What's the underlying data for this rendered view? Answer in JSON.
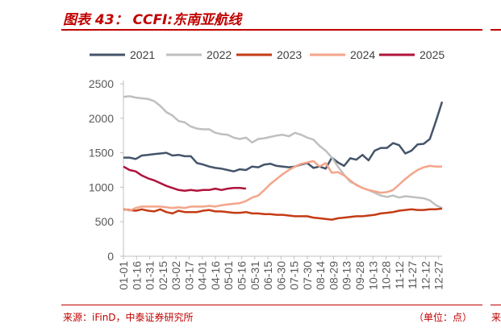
{
  "header": {
    "title": "图表 43：  CCFI:东南亚航线"
  },
  "footer": {
    "source": "来源：iFinD，中泰证券研究所",
    "unit": "（单位：点）",
    "side_mark": "来"
  },
  "chart_data": {
    "type": "line",
    "title": "",
    "xlabel": "",
    "ylabel": "",
    "ylim": [
      0,
      2500
    ],
    "yticks": [
      0,
      500,
      1000,
      1500,
      2000,
      2500
    ],
    "grid": false,
    "legend_position": "top",
    "x_ticks": [
      "01-01",
      "01-16",
      "01-31",
      "02-15",
      "03-02",
      "03-17",
      "04-01",
      "04-16",
      "05-01",
      "05-16",
      "05-31",
      "06-15",
      "06-30",
      "07-15",
      "07-30",
      "08-14",
      "08-29",
      "09-13",
      "09-28",
      "10-13",
      "10-28",
      "11-12",
      "11-27",
      "12-12",
      "12-27"
    ],
    "series": [
      {
        "name": "2021",
        "color": "#44546a",
        "values": [
          [
            "01-01",
            1430
          ],
          [
            "01-08",
            1430
          ],
          [
            "01-15",
            1410
          ],
          [
            "01-22",
            1460
          ],
          [
            "01-29",
            1470
          ],
          [
            "02-05",
            1480
          ],
          [
            "02-12",
            1490
          ],
          [
            "02-19",
            1500
          ],
          [
            "02-26",
            1460
          ],
          [
            "03-05",
            1470
          ],
          [
            "03-12",
            1450
          ],
          [
            "03-19",
            1450
          ],
          [
            "03-26",
            1350
          ],
          [
            "04-02",
            1330
          ],
          [
            "04-09",
            1300
          ],
          [
            "04-16",
            1280
          ],
          [
            "04-23",
            1270
          ],
          [
            "04-30",
            1250
          ],
          [
            "05-07",
            1230
          ],
          [
            "05-14",
            1260
          ],
          [
            "05-21",
            1250
          ],
          [
            "05-28",
            1300
          ],
          [
            "06-04",
            1290
          ],
          [
            "06-11",
            1330
          ],
          [
            "06-18",
            1340
          ],
          [
            "06-25",
            1310
          ],
          [
            "07-02",
            1300
          ],
          [
            "07-09",
            1290
          ],
          [
            "07-16",
            1300
          ],
          [
            "07-23",
            1330
          ],
          [
            "07-30",
            1350
          ],
          [
            "08-06",
            1280
          ],
          [
            "08-13",
            1300
          ],
          [
            "08-20",
            1270
          ],
          [
            "08-27",
            1430
          ],
          [
            "09-03",
            1360
          ],
          [
            "09-10",
            1310
          ],
          [
            "09-17",
            1420
          ],
          [
            "09-24",
            1400
          ],
          [
            "10-01",
            1470
          ],
          [
            "10-08",
            1390
          ],
          [
            "10-15",
            1530
          ],
          [
            "10-22",
            1570
          ],
          [
            "10-29",
            1570
          ],
          [
            "11-05",
            1640
          ],
          [
            "11-12",
            1610
          ],
          [
            "11-19",
            1490
          ],
          [
            "11-26",
            1530
          ],
          [
            "12-03",
            1620
          ],
          [
            "12-10",
            1630
          ],
          [
            "12-17",
            1700
          ],
          [
            "12-24",
            1960
          ],
          [
            "12-31",
            2240
          ]
        ]
      },
      {
        "name": "2022",
        "color": "#bfbfbf",
        "values": [
          [
            "01-01",
            2310
          ],
          [
            "01-08",
            2320
          ],
          [
            "01-15",
            2300
          ],
          [
            "01-22",
            2290
          ],
          [
            "01-29",
            2280
          ],
          [
            "02-05",
            2250
          ],
          [
            "02-12",
            2180
          ],
          [
            "02-19",
            2090
          ],
          [
            "02-26",
            2040
          ],
          [
            "03-05",
            1960
          ],
          [
            "03-12",
            1940
          ],
          [
            "03-19",
            1880
          ],
          [
            "03-26",
            1850
          ],
          [
            "04-02",
            1840
          ],
          [
            "04-09",
            1840
          ],
          [
            "04-16",
            1790
          ],
          [
            "04-23",
            1770
          ],
          [
            "04-30",
            1760
          ],
          [
            "05-07",
            1720
          ],
          [
            "05-14",
            1700
          ],
          [
            "05-21",
            1720
          ],
          [
            "05-28",
            1650
          ],
          [
            "06-04",
            1700
          ],
          [
            "06-11",
            1710
          ],
          [
            "06-18",
            1730
          ],
          [
            "06-25",
            1750
          ],
          [
            "07-02",
            1760
          ],
          [
            "07-09",
            1740
          ],
          [
            "07-16",
            1790
          ],
          [
            "07-23",
            1760
          ],
          [
            "07-30",
            1720
          ],
          [
            "08-06",
            1690
          ],
          [
            "08-13",
            1600
          ],
          [
            "08-20",
            1530
          ],
          [
            "08-27",
            1430
          ],
          [
            "09-03",
            1300
          ],
          [
            "09-10",
            1180
          ],
          [
            "09-17",
            1080
          ],
          [
            "09-24",
            1040
          ],
          [
            "10-01",
            990
          ],
          [
            "10-08",
            960
          ],
          [
            "10-15",
            920
          ],
          [
            "10-22",
            880
          ],
          [
            "10-29",
            860
          ],
          [
            "11-05",
            880
          ],
          [
            "11-12",
            850
          ],
          [
            "11-19",
            870
          ],
          [
            "11-26",
            860
          ],
          [
            "12-03",
            850
          ],
          [
            "12-10",
            840
          ],
          [
            "12-17",
            810
          ],
          [
            "12-24",
            740
          ],
          [
            "12-31",
            700
          ]
        ]
      },
      {
        "name": "2023",
        "color": "#c43b14",
        "values": [
          [
            "01-01",
            680
          ],
          [
            "01-08",
            670
          ],
          [
            "01-15",
            660
          ],
          [
            "01-22",
            680
          ],
          [
            "01-29",
            660
          ],
          [
            "02-05",
            650
          ],
          [
            "02-12",
            680
          ],
          [
            "02-19",
            640
          ],
          [
            "02-26",
            620
          ],
          [
            "03-05",
            660
          ],
          [
            "03-12",
            640
          ],
          [
            "03-19",
            640
          ],
          [
            "03-26",
            640
          ],
          [
            "04-02",
            660
          ],
          [
            "04-09",
            670
          ],
          [
            "04-16",
            650
          ],
          [
            "04-23",
            650
          ],
          [
            "04-30",
            640
          ],
          [
            "05-07",
            630
          ],
          [
            "05-14",
            630
          ],
          [
            "05-21",
            640
          ],
          [
            "05-28",
            620
          ],
          [
            "06-04",
            620
          ],
          [
            "06-11",
            610
          ],
          [
            "06-18",
            610
          ],
          [
            "06-25",
            600
          ],
          [
            "07-02",
            600
          ],
          [
            "07-09",
            590
          ],
          [
            "07-16",
            580
          ],
          [
            "07-23",
            580
          ],
          [
            "07-30",
            580
          ],
          [
            "08-06",
            560
          ],
          [
            "08-13",
            550
          ],
          [
            "08-20",
            540
          ],
          [
            "08-27",
            530
          ],
          [
            "09-03",
            550
          ],
          [
            "09-10",
            560
          ],
          [
            "09-17",
            570
          ],
          [
            "09-24",
            580
          ],
          [
            "10-01",
            580
          ],
          [
            "10-08",
            590
          ],
          [
            "10-15",
            600
          ],
          [
            "10-22",
            620
          ],
          [
            "10-29",
            630
          ],
          [
            "11-05",
            640
          ],
          [
            "11-12",
            660
          ],
          [
            "11-19",
            670
          ],
          [
            "11-26",
            680
          ],
          [
            "12-03",
            670
          ],
          [
            "12-10",
            670
          ],
          [
            "12-17",
            680
          ],
          [
            "12-24",
            680
          ],
          [
            "12-31",
            690
          ]
        ]
      },
      {
        "name": "2024",
        "color": "#f4a58a",
        "values": [
          [
            "01-01",
            690
          ],
          [
            "01-08",
            660
          ],
          [
            "01-15",
            700
          ],
          [
            "01-22",
            720
          ],
          [
            "01-29",
            720
          ],
          [
            "02-05",
            720
          ],
          [
            "02-12",
            720
          ],
          [
            "02-19",
            710
          ],
          [
            "02-26",
            700
          ],
          [
            "03-05",
            710
          ],
          [
            "03-12",
            700
          ],
          [
            "03-19",
            720
          ],
          [
            "03-26",
            720
          ],
          [
            "04-02",
            720
          ],
          [
            "04-09",
            730
          ],
          [
            "04-16",
            720
          ],
          [
            "04-23",
            740
          ],
          [
            "04-30",
            750
          ],
          [
            "05-07",
            760
          ],
          [
            "05-14",
            770
          ],
          [
            "05-21",
            800
          ],
          [
            "05-28",
            850
          ],
          [
            "06-04",
            880
          ],
          [
            "06-11",
            960
          ],
          [
            "06-18",
            1050
          ],
          [
            "06-25",
            1120
          ],
          [
            "07-02",
            1190
          ],
          [
            "07-09",
            1250
          ],
          [
            "07-16",
            1300
          ],
          [
            "07-23",
            1340
          ],
          [
            "07-30",
            1360
          ],
          [
            "08-06",
            1380
          ],
          [
            "08-13",
            1300
          ],
          [
            "08-20",
            1350
          ],
          [
            "08-27",
            1210
          ],
          [
            "09-03",
            1220
          ],
          [
            "09-10",
            1170
          ],
          [
            "09-17",
            1100
          ],
          [
            "09-24",
            1030
          ],
          [
            "10-01",
            990
          ],
          [
            "10-08",
            960
          ],
          [
            "10-15",
            940
          ],
          [
            "10-22",
            920
          ],
          [
            "10-29",
            930
          ],
          [
            "11-05",
            960
          ],
          [
            "11-12",
            1040
          ],
          [
            "11-19",
            1120
          ],
          [
            "11-26",
            1190
          ],
          [
            "12-03",
            1250
          ],
          [
            "12-10",
            1290
          ],
          [
            "12-17",
            1310
          ],
          [
            "12-24",
            1300
          ],
          [
            "12-31",
            1300
          ]
        ]
      },
      {
        "name": "2025",
        "color": "#b0133c",
        "values": [
          [
            "01-01",
            1300
          ],
          [
            "01-08",
            1250
          ],
          [
            "01-15",
            1230
          ],
          [
            "01-22",
            1170
          ],
          [
            "01-29",
            1130
          ],
          [
            "02-05",
            1100
          ],
          [
            "02-12",
            1060
          ],
          [
            "02-19",
            1020
          ],
          [
            "02-26",
            990
          ],
          [
            "03-05",
            960
          ],
          [
            "03-12",
            950
          ],
          [
            "03-19",
            960
          ],
          [
            "03-26",
            950
          ],
          [
            "04-02",
            960
          ],
          [
            "04-09",
            960
          ],
          [
            "04-16",
            980
          ],
          [
            "04-23",
            960
          ],
          [
            "04-30",
            980
          ],
          [
            "05-07",
            990
          ],
          [
            "05-14",
            990
          ],
          [
            "05-21",
            980
          ]
        ]
      }
    ]
  }
}
